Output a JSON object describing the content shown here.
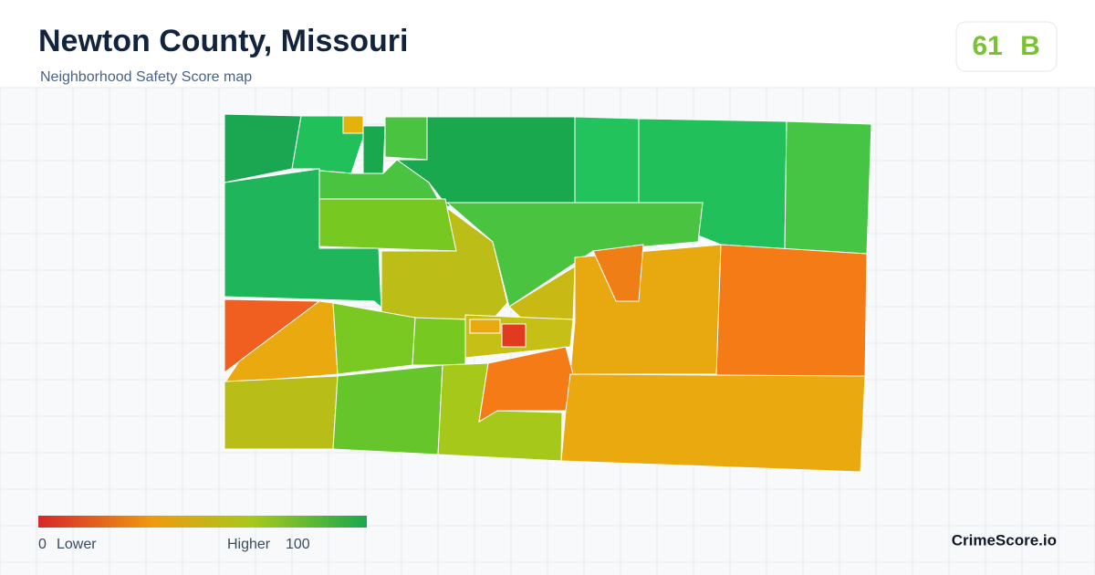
{
  "header": {
    "title": "Newton County, Missouri",
    "subtitle": "Neighborhood Safety Score map"
  },
  "badge": {
    "score": 61,
    "grade": "B"
  },
  "legend": {
    "min": 0,
    "min_label": "Lower",
    "max_label": "Higher",
    "max": 100
  },
  "footer": {
    "brand": "CrimeScore.io"
  }
}
